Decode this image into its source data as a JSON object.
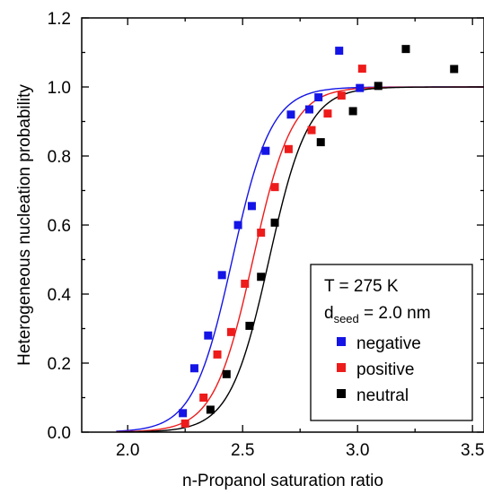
{
  "chart_data": {
    "type": "scatter",
    "xlabel": "n-Propanol saturation ratio",
    "ylabel": "Heterogeneous nucleation probability",
    "xlim": [
      1.8,
      3.55
    ],
    "ylim": [
      0.0,
      1.2
    ],
    "xticks": [
      "2.0",
      "2.5",
      "3.0",
      "3.5"
    ],
    "yticks": [
      "0.0",
      "0.2",
      "0.4",
      "0.6",
      "0.8",
      "1.0",
      "1.2"
    ],
    "grid": false,
    "legend": {
      "placement": "bottom-right",
      "line1": "T = 275 K",
      "line2_prefix": "d",
      "line2_sub": "seed",
      "line2_suffix": " = 2.0 nm"
    },
    "series": [
      {
        "name": "negative",
        "color": "#1414e6",
        "points": [
          [
            2.24,
            0.055
          ],
          [
            2.29,
            0.185
          ],
          [
            2.35,
            0.28
          ],
          [
            2.41,
            0.455
          ],
          [
            2.48,
            0.6
          ],
          [
            2.54,
            0.655
          ],
          [
            2.6,
            0.815
          ],
          [
            2.71,
            0.92
          ],
          [
            2.79,
            0.935
          ],
          [
            2.83,
            0.97
          ],
          [
            2.92,
            1.105
          ],
          [
            3.01,
            0.997
          ]
        ],
        "fit_center": 2.455,
        "fit_width": 0.085
      },
      {
        "name": "positive",
        "color": "#ee1b1b",
        "points": [
          [
            2.25,
            0.025
          ],
          [
            2.33,
            0.1
          ],
          [
            2.39,
            0.225
          ],
          [
            2.45,
            0.29
          ],
          [
            2.51,
            0.43
          ],
          [
            2.58,
            0.578
          ],
          [
            2.64,
            0.71
          ],
          [
            2.7,
            0.82
          ],
          [
            2.8,
            0.875
          ],
          [
            2.87,
            0.923
          ],
          [
            2.93,
            0.975
          ],
          [
            3.02,
            1.053
          ]
        ],
        "fit_center": 2.545,
        "fit_width": 0.085
      },
      {
        "name": "neutral",
        "color": "#000000",
        "points": [
          [
            2.36,
            0.065
          ],
          [
            2.43,
            0.168
          ],
          [
            2.53,
            0.308
          ],
          [
            2.58,
            0.45
          ],
          [
            2.64,
            0.607
          ],
          [
            2.84,
            0.84
          ],
          [
            2.98,
            0.93
          ],
          [
            3.09,
            1.003
          ],
          [
            3.21,
            1.11
          ],
          [
            3.42,
            1.052
          ]
        ],
        "fit_center": 2.615,
        "fit_width": 0.085
      }
    ]
  }
}
